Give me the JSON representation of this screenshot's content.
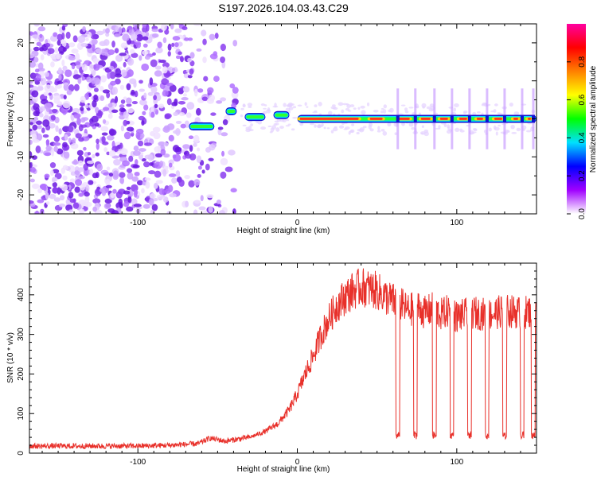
{
  "chart_data": [
    {
      "type": "heatmap",
      "title": "S197.2026.104.03.43.C29",
      "xlabel": "Height of straight line (km)",
      "ylabel": "Frequency (Hz)",
      "xlim": [
        -168,
        150
      ],
      "ylim": [
        -25,
        25
      ],
      "xticks": [
        -100,
        0,
        100
      ],
      "xtick_labels": [
        "-100",
        "0",
        "100"
      ],
      "yticks": [
        -20,
        -10,
        0,
        10,
        20
      ],
      "ytick_labels": [
        "-20",
        "-10",
        "0",
        "10",
        "20"
      ],
      "noise_region_x": [
        -168,
        -35
      ],
      "carrier_onset_x": -68,
      "carrier_segments": [
        {
          "x0": -68,
          "x1": -52,
          "freq": -2
        },
        {
          "x0": -45,
          "x1": -38,
          "freq": 2
        },
        {
          "x0": -33,
          "x1": -20,
          "freq": 0.5
        },
        {
          "x0": -15,
          "x1": -5,
          "freq": 1
        },
        {
          "x0": 0,
          "x1": 150,
          "freq": 0
        }
      ],
      "dropout_x": [
        63,
        74,
        86,
        97,
        108,
        119,
        130,
        141,
        148
      ],
      "colorbar": {
        "label": "Normalized spectral amplitude",
        "range": [
          0,
          1
        ],
        "ticks": [
          0.0,
          0.2,
          0.4,
          0.6,
          0.8
        ],
        "tick_labels": [
          "0.0",
          "0.2",
          "0.4",
          "0.6",
          "0.8"
        ],
        "colors": [
          "#ffffff",
          "#a000ff",
          "#0000ff",
          "#00e0ff",
          "#00ff00",
          "#ffff00",
          "#ff8000",
          "#ff0000",
          "#ff00a0"
        ]
      }
    },
    {
      "type": "line",
      "xlabel": "Height of straight line (km)",
      "ylabel": "SNR (10 * v/v)",
      "xlim": [
        -168,
        150
      ],
      "ylim": [
        0,
        480
      ],
      "xticks": [
        -100,
        0,
        100
      ],
      "xtick_labels": [
        "-100",
        "0",
        "100"
      ],
      "yticks": [
        0,
        100,
        200,
        300,
        400
      ],
      "ytick_labels": [
        "0",
        "100",
        "200",
        "300",
        "400"
      ],
      "series": [
        {
          "name": "SNR",
          "color": "#e8302a",
          "x": [
            -168,
            -150,
            -120,
            -100,
            -80,
            -62,
            -55,
            -45,
            -38,
            -30,
            -20,
            -12,
            -5,
            0,
            5,
            10,
            15,
            20,
            25,
            30,
            35,
            40,
            45,
            50,
            55,
            60,
            62,
            65,
            70,
            75,
            80,
            85,
            90,
            95,
            100,
            110,
            120,
            130,
            140,
            150
          ],
          "values": [
            18,
            18,
            18,
            18,
            20,
            24,
            38,
            30,
            35,
            40,
            55,
            75,
            110,
            150,
            200,
            245,
            300,
            340,
            375,
            395,
            410,
            420,
            415,
            410,
            395,
            385,
            380,
            375,
            360,
            370,
            355,
            365,
            350,
            360,
            345,
            355,
            350,
            360,
            355,
            360
          ],
          "dropout_x": [
            63,
            74,
            86,
            97,
            108,
            119,
            130,
            141,
            148
          ],
          "dropout_level": 45
        }
      ]
    }
  ]
}
